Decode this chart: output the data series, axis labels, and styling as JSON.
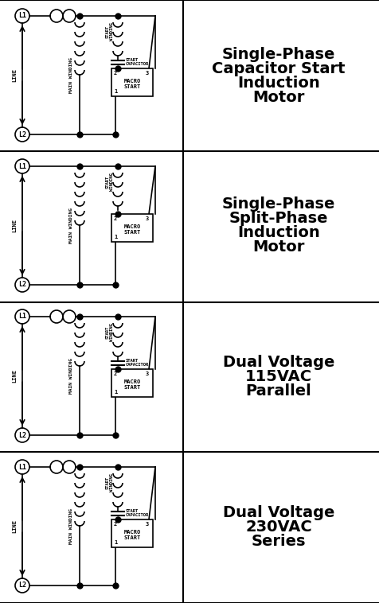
{
  "labels": [
    [
      "Single-Phase",
      "Capacitor Start",
      "Induction",
      "Motor"
    ],
    [
      "Single-Phase",
      "Split-Phase",
      "Induction",
      "Motor"
    ],
    [
      "Dual Voltage",
      "115VAC",
      "Parallel"
    ],
    [
      "Dual Voltage",
      "230VAC",
      "Series"
    ]
  ],
  "bg_color": "#ffffff",
  "line_color": "#000000",
  "text_color": "#000000",
  "diagram_count": 4,
  "fig_width": 4.77,
  "fig_height": 7.58
}
